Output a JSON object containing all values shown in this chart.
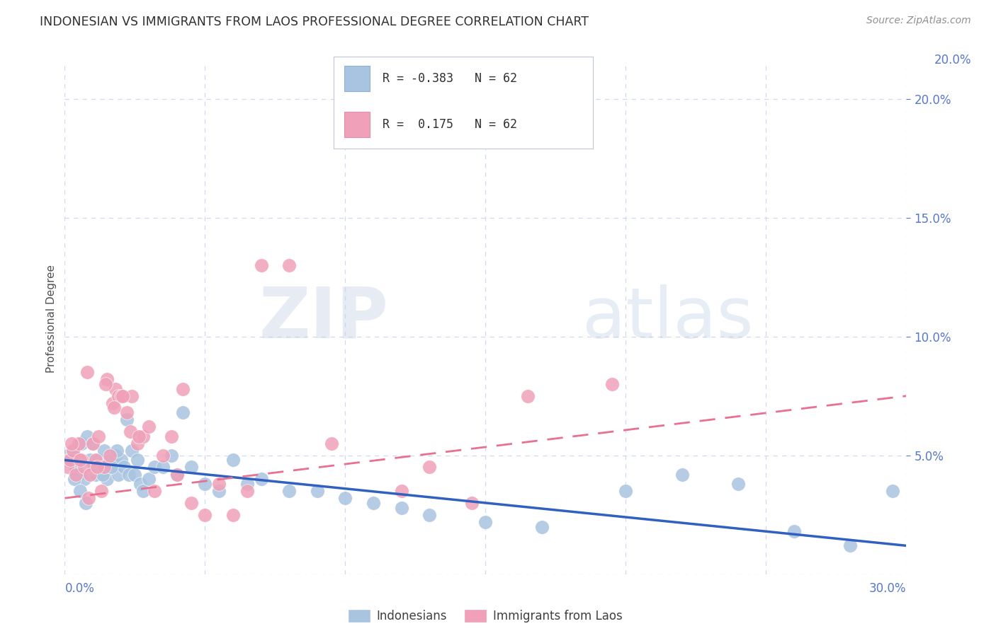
{
  "title": "INDONESIAN VS IMMIGRANTS FROM LAOS PROFESSIONAL DEGREE CORRELATION CHART",
  "source": "Source: ZipAtlas.com",
  "ylabel": "Professional Degree",
  "watermark_zip": "ZIP",
  "watermark_atlas": "atlas",
  "blue_color": "#a8c4e0",
  "pink_color": "#f0a0b8",
  "blue_line_color": "#3060c0",
  "pink_line_color": "#e87090",
  "title_color": "#303030",
  "axis_color": "#5878c8",
  "grid_color": "#d0d8f0",
  "indonesians_x": [
    0.1,
    0.2,
    0.3,
    0.4,
    0.5,
    0.6,
    0.7,
    0.8,
    0.9,
    1.0,
    1.1,
    1.2,
    1.3,
    1.4,
    1.5,
    1.6,
    1.7,
    1.8,
    1.9,
    2.0,
    2.1,
    2.2,
    2.3,
    2.4,
    2.5,
    2.6,
    2.7,
    2.8,
    3.0,
    3.2,
    3.5,
    3.8,
    4.0,
    4.2,
    4.5,
    5.0,
    5.5,
    6.0,
    6.5,
    7.0,
    8.0,
    9.0,
    10.0,
    11.0,
    12.0,
    13.0,
    15.0,
    17.0,
    20.0,
    22.0,
    24.0,
    26.0,
    28.0,
    29.5,
    0.15,
    0.35,
    0.55,
    0.75,
    1.05,
    1.35,
    1.65,
    1.85
  ],
  "indonesians_y": [
    5.0,
    4.8,
    5.2,
    4.5,
    4.2,
    5.5,
    4.0,
    5.8,
    4.8,
    5.5,
    4.2,
    4.8,
    4.5,
    5.2,
    4.0,
    4.8,
    4.5,
    5.0,
    4.2,
    4.8,
    4.5,
    6.5,
    4.2,
    5.2,
    4.2,
    4.8,
    3.8,
    3.5,
    4.0,
    4.5,
    4.5,
    5.0,
    4.2,
    6.8,
    4.5,
    3.8,
    3.5,
    4.8,
    3.8,
    4.0,
    3.5,
    3.5,
    3.2,
    3.0,
    2.8,
    2.5,
    2.2,
    2.0,
    3.5,
    4.2,
    3.8,
    1.8,
    1.2,
    3.5,
    4.8,
    4.0,
    3.5,
    3.0,
    4.5,
    4.2,
    4.5,
    5.2
  ],
  "laos_x": [
    0.1,
    0.2,
    0.3,
    0.4,
    0.5,
    0.6,
    0.7,
    0.8,
    0.9,
    1.0,
    1.1,
    1.2,
    1.3,
    1.4,
    1.5,
    1.6,
    1.7,
    1.8,
    1.9,
    2.0,
    2.2,
    2.4,
    2.6,
    2.8,
    3.0,
    3.2,
    3.5,
    3.8,
    4.0,
    4.2,
    4.5,
    5.0,
    5.5,
    6.0,
    6.5,
    7.0,
    8.0,
    9.5,
    12.0,
    13.0,
    14.5,
    16.5,
    19.5,
    0.25,
    0.55,
    0.85,
    1.15,
    1.45,
    1.75,
    2.05,
    2.35,
    2.65
  ],
  "laos_y": [
    4.5,
    4.8,
    5.2,
    4.2,
    5.5,
    4.8,
    4.5,
    8.5,
    4.2,
    5.5,
    4.8,
    5.8,
    3.5,
    4.5,
    8.2,
    5.0,
    7.2,
    7.8,
    7.5,
    7.5,
    6.8,
    7.5,
    5.5,
    5.8,
    6.2,
    3.5,
    5.0,
    5.8,
    4.2,
    7.8,
    3.0,
    2.5,
    3.8,
    2.5,
    3.5,
    13.0,
    13.0,
    5.5,
    3.5,
    4.5,
    3.0,
    7.5,
    8.0,
    5.5,
    4.8,
    3.2,
    4.5,
    8.0,
    7.0,
    7.5,
    6.0,
    5.8
  ],
  "indo_line_x0": 0.0,
  "indo_line_x1": 30.0,
  "indo_line_y0": 4.8,
  "indo_line_y1": 1.2,
  "laos_line_x0": 0.0,
  "laos_line_x1": 30.0,
  "laos_line_y0": 3.2,
  "laos_line_y1": 7.5,
  "xlim": [
    0.0,
    30.0
  ],
  "ylim": [
    0.0,
    21.5
  ],
  "legend_r1_val": "-0.383",
  "legend_r2_val": " 0.175",
  "legend_n": "62"
}
